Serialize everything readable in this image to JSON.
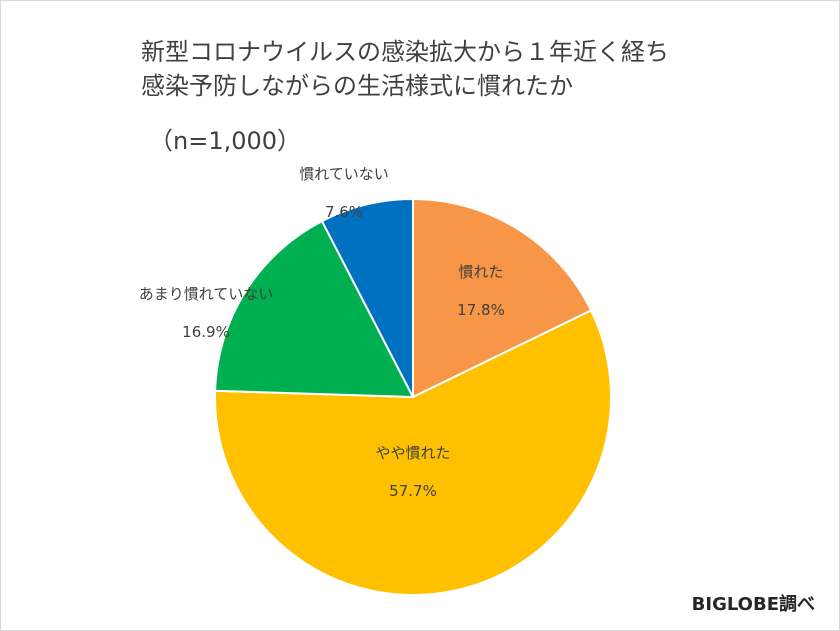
{
  "title_lines": [
    "新型コロナウイルスの感染拡大から１年近く経ち",
    "感染予防しながらの生活様式に慣れたか"
  ],
  "sample_size": "（n=1,000）",
  "source": "BIGLOBE調べ",
  "chart_data": {
    "type": "pie",
    "slices": [
      {
        "label": "慣れた",
        "value": 17.8,
        "value_label": "17.8%",
        "color": "#F79646"
      },
      {
        "label": "やや慣れた",
        "value": 57.7,
        "value_label": "57.7%",
        "color": "#FFC000"
      },
      {
        "label": "あまり慣れていない",
        "value": 16.9,
        "value_label": "16.9%",
        "color": "#00B050"
      },
      {
        "label": "慣れていない",
        "value": 7.6,
        "value_label": "7.6%",
        "color": "#0070C0"
      }
    ],
    "start_angle": "12 o'clock",
    "direction": "clockwise",
    "legend": "none"
  }
}
